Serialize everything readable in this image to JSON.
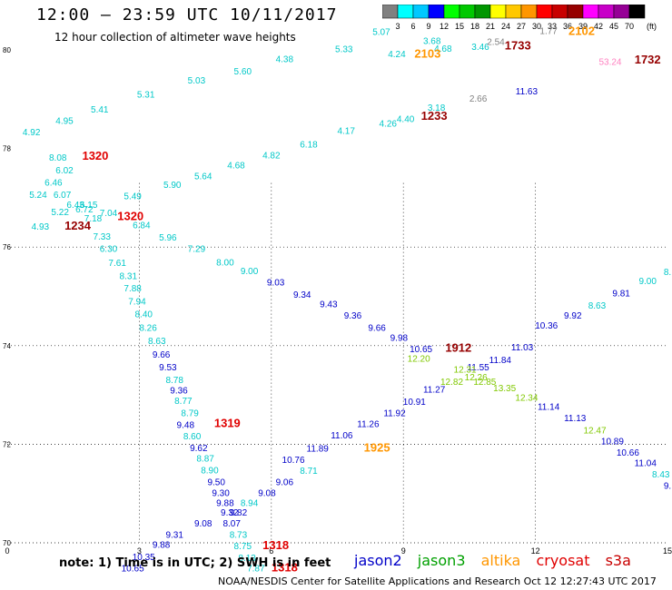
{
  "header": {
    "title": "12:00 — 23:59 UTC 10/11/2017",
    "subtitle": "12 hour collection of altimeter wave heights"
  },
  "colorbar": {
    "unit": "(ft)",
    "ticks": [
      "3",
      "6",
      "9",
      "12",
      "15",
      "18",
      "21",
      "24",
      "27",
      "30",
      "33",
      "36",
      "39",
      "42",
      "45",
      "70"
    ],
    "colors": [
      "#808080",
      "#00ffff",
      "#00c8ff",
      "#0000ff",
      "#00ff00",
      "#00c800",
      "#009600",
      "#ffff00",
      "#ffc800",
      "#ff9600",
      "#ff0000",
      "#c80000",
      "#960000",
      "#ff00ff",
      "#c800c8",
      "#960096",
      "#000000"
    ]
  },
  "footer": {
    "note": "note: 1) Time is in UTC; 2) SWH is in feet",
    "missions": [
      {
        "name": "jason2",
        "color": "#0000c8"
      },
      {
        "name": "jason3",
        "color": "#00a000"
      },
      {
        "name": "altika",
        "color": "#ff9600"
      },
      {
        "name": "cryosat",
        "color": "#e00000"
      },
      {
        "name": "s3a",
        "color": "#c80000"
      }
    ],
    "credit": "NOAA/NESDIS Center for Satellite Applications and Research     Oct 12 12:27:43 UTC 2017"
  },
  "chart_data": {
    "type": "scatter",
    "xlabel": "",
    "ylabel": "",
    "x_ticks": [
      "0",
      "3",
      "6",
      "9",
      "12",
      "15"
    ],
    "y_ticks": [
      "70",
      "72",
      "74",
      "76",
      "78",
      "80"
    ],
    "xlim": [
      0,
      15
    ],
    "ylim": [
      70,
      80
    ],
    "grid": true,
    "labels": [
      {
        "t": "4.92",
        "x": 0.55,
        "y": 78.27,
        "c": "#00c8c8"
      },
      {
        "t": "4.95",
        "x": 1.3,
        "y": 78.5,
        "c": "#00c8c8"
      },
      {
        "t": "5.41",
        "x": 2.1,
        "y": 78.73,
        "c": "#00c8c8"
      },
      {
        "t": "5.31",
        "x": 3.15,
        "y": 79.03,
        "c": "#00c8c8"
      },
      {
        "t": "5.03",
        "x": 4.3,
        "y": 79.32,
        "c": "#00c8c8"
      },
      {
        "t": "5.60",
        "x": 5.35,
        "y": 79.5,
        "c": "#00c8c8"
      },
      {
        "t": "4.38",
        "x": 6.3,
        "y": 79.75,
        "c": "#00c8c8"
      },
      {
        "t": "5.33",
        "x": 7.65,
        "y": 79.95,
        "c": "#00c8c8"
      },
      {
        "t": "5.07",
        "x": 8.5,
        "y": 80.3,
        "c": "#00c8c8"
      },
      {
        "t": "3.68",
        "x": 9.65,
        "y": 80.12,
        "c": "#00c8c8"
      },
      {
        "t": "4.68",
        "x": 9.9,
        "y": 79.96,
        "c": "#00c8c8"
      },
      {
        "t": "4.24",
        "x": 8.85,
        "y": 79.85,
        "c": "#00c8c8"
      },
      {
        "t": "2103",
        "x": 9.55,
        "y": 79.84,
        "c": "#ff9600",
        "b": true
      },
      {
        "t": "3.46",
        "x": 10.75,
        "y": 80.0,
        "c": "#00c8c8"
      },
      {
        "t": "2.54",
        "x": 11.1,
        "y": 80.1,
        "c": "#808080"
      },
      {
        "t": "1733",
        "x": 11.6,
        "y": 80.01,
        "c": "#960000",
        "b": true
      },
      {
        "t": "1.77",
        "x": 12.3,
        "y": 80.32,
        "c": "#808080"
      },
      {
        "t": "2102",
        "x": 13.05,
        "y": 80.3,
        "c": "#ff9600",
        "b": true
      },
      {
        "t": "53.24",
        "x": 13.7,
        "y": 79.7,
        "c": "#ff80c0"
      },
      {
        "t": "1732",
        "x": 14.55,
        "y": 79.72,
        "c": "#960000",
        "b": true
      },
      {
        "t": "11.63",
        "x": 11.8,
        "y": 79.1,
        "c": "#0000c8"
      },
      {
        "t": "2.66",
        "x": 10.7,
        "y": 78.95,
        "c": "#808080"
      },
      {
        "t": "3.18",
        "x": 9.75,
        "y": 78.77,
        "c": "#00c8c8"
      },
      {
        "t": "4.40",
        "x": 9.05,
        "y": 78.54,
        "c": "#00c8c8"
      },
      {
        "t": "1233",
        "x": 9.7,
        "y": 78.58,
        "c": "#960000",
        "b": true
      },
      {
        "t": "4.26",
        "x": 8.65,
        "y": 78.44,
        "c": "#00c8c8"
      },
      {
        "t": "4.17",
        "x": 7.7,
        "y": 78.3,
        "c": "#00c8c8"
      },
      {
        "t": "6.18",
        "x": 6.85,
        "y": 78.02,
        "c": "#00c8c8"
      },
      {
        "t": "4.82",
        "x": 6.0,
        "y": 77.8,
        "c": "#00c8c8"
      },
      {
        "t": "4.68",
        "x": 5.2,
        "y": 77.6,
        "c": "#00c8c8"
      },
      {
        "t": "5.64",
        "x": 4.45,
        "y": 77.38,
        "c": "#00c8c8"
      },
      {
        "t": "5.90",
        "x": 3.75,
        "y": 77.2,
        "c": "#00c8c8"
      },
      {
        "t": "8.08",
        "x": 1.15,
        "y": 77.75,
        "c": "#00c8c8"
      },
      {
        "t": "1320",
        "x": 2.0,
        "y": 77.77,
        "c": "#e00000",
        "b": true
      },
      {
        "t": "6.02",
        "x": 1.3,
        "y": 77.5,
        "c": "#00c8c8"
      },
      {
        "t": "6.46",
        "x": 1.05,
        "y": 77.25,
        "c": "#00c8c8"
      },
      {
        "t": "5.24",
        "x": 0.7,
        "y": 77.0,
        "c": "#00c8c8"
      },
      {
        "t": "6.07",
        "x": 1.25,
        "y": 77.0,
        "c": "#00c8c8"
      },
      {
        "t": "5.49",
        "x": 2.85,
        "y": 76.97,
        "c": "#00c8c8"
      },
      {
        "t": "6.43",
        "x": 1.55,
        "y": 76.8,
        "c": "#00c8c8"
      },
      {
        "t": "6.15",
        "x": 1.85,
        "y": 76.8,
        "c": "#00c8c8"
      },
      {
        "t": "6.72",
        "x": 1.75,
        "y": 76.7,
        "c": "#00c8c8"
      },
      {
        "t": "5.22",
        "x": 1.2,
        "y": 76.65,
        "c": "#00c8c8"
      },
      {
        "t": "7.04",
        "x": 2.3,
        "y": 76.63,
        "c": "#00c8c8"
      },
      {
        "t": "1320",
        "x": 2.8,
        "y": 76.55,
        "c": "#e00000",
        "b": true
      },
      {
        "t": "7.18",
        "x": 1.95,
        "y": 76.52,
        "c": "#00c8c8"
      },
      {
        "t": "4.93",
        "x": 0.75,
        "y": 76.35,
        "c": "#00c8c8"
      },
      {
        "t": "1234",
        "x": 1.6,
        "y": 76.35,
        "c": "#960000",
        "b": true
      },
      {
        "t": "6.84",
        "x": 3.05,
        "y": 76.38,
        "c": "#00c8c8"
      },
      {
        "t": "7.33",
        "x": 2.15,
        "y": 76.15,
        "c": "#00c8c8"
      },
      {
        "t": "5.96",
        "x": 3.65,
        "y": 76.13,
        "c": "#00c8c8"
      },
      {
        "t": "6.30",
        "x": 2.3,
        "y": 75.9,
        "c": "#00c8c8"
      },
      {
        "t": "7.29",
        "x": 4.3,
        "y": 75.9,
        "c": "#00c8c8"
      },
      {
        "t": "8.00",
        "x": 4.95,
        "y": 75.63,
        "c": "#00c8c8"
      },
      {
        "t": "7.61",
        "x": 2.5,
        "y": 75.62,
        "c": "#00c8c8"
      },
      {
        "t": "9.00",
        "x": 5.5,
        "y": 75.45,
        "c": "#00c8c8"
      },
      {
        "t": "8.31",
        "x": 2.75,
        "y": 75.35,
        "c": "#00c8c8"
      },
      {
        "t": "7.88",
        "x": 2.85,
        "y": 75.1,
        "c": "#00c8c8"
      },
      {
        "t": "9.03",
        "x": 6.1,
        "y": 75.22,
        "c": "#0000c8"
      },
      {
        "t": "7.94",
        "x": 2.95,
        "y": 74.83,
        "c": "#00c8c8"
      },
      {
        "t": "9.34",
        "x": 6.7,
        "y": 74.97,
        "c": "#0000c8"
      },
      {
        "t": "8.40",
        "x": 3.1,
        "y": 74.58,
        "c": "#00c8c8"
      },
      {
        "t": "9.43",
        "x": 7.3,
        "y": 74.78,
        "c": "#0000c8"
      },
      {
        "t": "8.26",
        "x": 3.2,
        "y": 74.3,
        "c": "#00c8c8"
      },
      {
        "t": "9.36",
        "x": 7.85,
        "y": 74.55,
        "c": "#0000c8"
      },
      {
        "t": "8.63",
        "x": 3.4,
        "y": 74.03,
        "c": "#00c8c8"
      },
      {
        "t": "9.66",
        "x": 8.4,
        "y": 74.3,
        "c": "#0000c8"
      },
      {
        "t": "9.66",
        "x": 3.5,
        "y": 73.76,
        "c": "#0000c8"
      },
      {
        "t": "9.98",
        "x": 8.9,
        "y": 74.1,
        "c": "#0000c8"
      },
      {
        "t": "10.65",
        "x": 9.4,
        "y": 73.87,
        "c": "#0000c8"
      },
      {
        "t": "1912",
        "x": 10.25,
        "y": 73.88,
        "c": "#960000",
        "b": true
      },
      {
        "t": "9.53",
        "x": 3.65,
        "y": 73.5,
        "c": "#0000c8"
      },
      {
        "t": "12.20",
        "x": 9.35,
        "y": 73.67,
        "c": "#80c800"
      },
      {
        "t": "11.84",
        "x": 11.2,
        "y": 73.65,
        "c": "#0000c8"
      },
      {
        "t": "11.03",
        "x": 11.7,
        "y": 73.9,
        "c": "#0000c8"
      },
      {
        "t": "8.78",
        "x": 3.8,
        "y": 73.24,
        "c": "#00c8c8"
      },
      {
        "t": "11.55",
        "x": 10.7,
        "y": 73.5,
        "c": "#0000c8"
      },
      {
        "t": "12.31",
        "x": 10.4,
        "y": 73.45,
        "c": "#80c800"
      },
      {
        "t": "12.26",
        "x": 10.65,
        "y": 73.3,
        "c": "#80c800"
      },
      {
        "t": "12.82",
        "x": 10.1,
        "y": 73.2,
        "c": "#80c800"
      },
      {
        "t": "12.85",
        "x": 10.85,
        "y": 73.2,
        "c": "#80c800"
      },
      {
        "t": "13.35",
        "x": 11.3,
        "y": 73.08,
        "c": "#80c800"
      },
      {
        "t": "12.34",
        "x": 11.8,
        "y": 72.88,
        "c": "#80c800"
      },
      {
        "t": "9.36",
        "x": 3.9,
        "y": 73.03,
        "c": "#0000c8"
      },
      {
        "t": "11.27",
        "x": 9.7,
        "y": 73.05,
        "c": "#0000c8"
      },
      {
        "t": "10.36",
        "x": 12.25,
        "y": 74.35,
        "c": "#0000c8"
      },
      {
        "t": "9.92",
        "x": 12.85,
        "y": 74.55,
        "c": "#0000c8"
      },
      {
        "t": "8.63",
        "x": 13.4,
        "y": 74.75,
        "c": "#00c8c8"
      },
      {
        "t": "9.81",
        "x": 13.95,
        "y": 75.0,
        "c": "#0000c8"
      },
      {
        "t": "9.00",
        "x": 14.55,
        "y": 75.25,
        "c": "#00c8c8"
      },
      {
        "t": "8.",
        "x": 15.0,
        "y": 75.43,
        "c": "#00c8c8"
      },
      {
        "t": "8.77",
        "x": 4.0,
        "y": 72.82,
        "c": "#00c8c8"
      },
      {
        "t": "10.91",
        "x": 9.25,
        "y": 72.8,
        "c": "#0000c8"
      },
      {
        "t": "8.79",
        "x": 4.15,
        "y": 72.57,
        "c": "#00c8c8"
      },
      {
        "t": "11.92",
        "x": 8.8,
        "y": 72.57,
        "c": "#0000c8"
      },
      {
        "t": "11.14",
        "x": 12.3,
        "y": 72.7,
        "c": "#0000c8"
      },
      {
        "t": "9.48",
        "x": 4.05,
        "y": 72.33,
        "c": "#0000c8"
      },
      {
        "t": "1319",
        "x": 5.0,
        "y": 72.35,
        "c": "#e00000",
        "b": true
      },
      {
        "t": "11.26",
        "x": 8.2,
        "y": 72.35,
        "c": "#0000c8"
      },
      {
        "t": "11.13",
        "x": 12.9,
        "y": 72.47,
        "c": "#0000c8"
      },
      {
        "t": "8.60",
        "x": 4.2,
        "y": 72.1,
        "c": "#00c8c8"
      },
      {
        "t": "11.06",
        "x": 7.6,
        "y": 72.12,
        "c": "#0000c8"
      },
      {
        "t": "12.47",
        "x": 13.35,
        "y": 72.22,
        "c": "#80c800"
      },
      {
        "t": "9.62",
        "x": 4.35,
        "y": 71.86,
        "c": "#0000c8"
      },
      {
        "t": "11.89",
        "x": 7.05,
        "y": 71.85,
        "c": "#0000c8"
      },
      {
        "t": "1925",
        "x": 8.4,
        "y": 71.85,
        "c": "#ff9600",
        "b": true
      },
      {
        "t": "10.89",
        "x": 13.75,
        "y": 72.0,
        "c": "#0000c8"
      },
      {
        "t": "8.87",
        "x": 4.5,
        "y": 71.65,
        "c": "#00c8c8"
      },
      {
        "t": "10.76",
        "x": 6.5,
        "y": 71.62,
        "c": "#0000c8"
      },
      {
        "t": "10.66",
        "x": 14.1,
        "y": 71.77,
        "c": "#0000c8"
      },
      {
        "t": "8.90",
        "x": 4.6,
        "y": 71.41,
        "c": "#00c8c8"
      },
      {
        "t": "8.71",
        "x": 6.85,
        "y": 71.4,
        "c": "#00c8c8"
      },
      {
        "t": "11.04",
        "x": 14.5,
        "y": 71.56,
        "c": "#0000c8"
      },
      {
        "t": "9.50",
        "x": 4.75,
        "y": 71.17,
        "c": "#0000c8"
      },
      {
        "t": "9.06",
        "x": 6.3,
        "y": 71.17,
        "c": "#0000c8"
      },
      {
        "t": "8.43",
        "x": 14.85,
        "y": 71.33,
        "c": "#00c8c8"
      },
      {
        "t": "9.",
        "x": 15.0,
        "y": 71.1,
        "c": "#0000c8"
      },
      {
        "t": "9.30",
        "x": 4.85,
        "y": 70.95,
        "c": "#0000c8"
      },
      {
        "t": "9.08",
        "x": 5.9,
        "y": 70.95,
        "c": "#0000c8"
      },
      {
        "t": "9.88",
        "x": 4.95,
        "y": 70.75,
        "c": "#0000c8"
      },
      {
        "t": "8.94",
        "x": 5.5,
        "y": 70.75,
        "c": "#00c8c8"
      },
      {
        "t": "9.32",
        "x": 5.05,
        "y": 70.55,
        "c": "#0000c8"
      },
      {
        "t": "9.82",
        "x": 5.25,
        "y": 70.55,
        "c": "#0000c8"
      },
      {
        "t": "9.08",
        "x": 4.45,
        "y": 70.33,
        "c": "#0000c8"
      },
      {
        "t": "8.07",
        "x": 5.1,
        "y": 70.33,
        "c": "#0000c8"
      },
      {
        "t": "9.31",
        "x": 3.8,
        "y": 70.1,
        "c": "#0000c8"
      },
      {
        "t": "8.73",
        "x": 5.25,
        "y": 70.1,
        "c": "#00c8c8"
      },
      {
        "t": "9.88",
        "x": 3.5,
        "y": 69.9,
        "c": "#0000c8"
      },
      {
        "t": "8.75",
        "x": 5.35,
        "y": 69.87,
        "c": "#00c8c8"
      },
      {
        "t": "1318",
        "x": 6.1,
        "y": 69.87,
        "c": "#e00000",
        "b": true
      },
      {
        "t": "10.35",
        "x": 3.1,
        "y": 69.65,
        "c": "#0000c8"
      },
      {
        "t": "8.13",
        "x": 5.45,
        "y": 69.63,
        "c": "#00c8c8"
      },
      {
        "t": "10.65",
        "x": 2.85,
        "y": 69.42,
        "c": "#0000c8"
      },
      {
        "t": "7.87",
        "x": 5.65,
        "y": 69.42,
        "c": "#00c8c8"
      },
      {
        "t": "1318",
        "x": 6.3,
        "y": 69.42,
        "c": "#e00000",
        "b": true
      }
    ]
  }
}
